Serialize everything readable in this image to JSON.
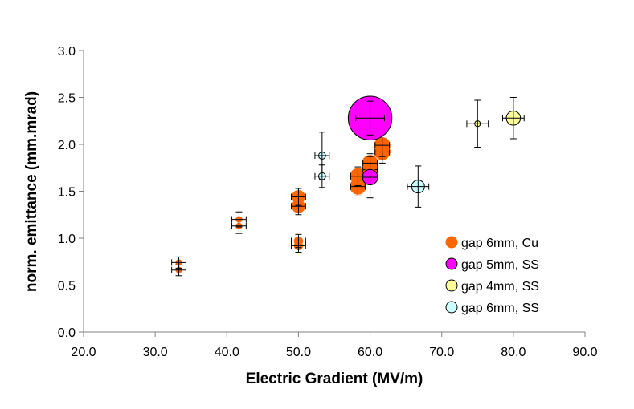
{
  "chart_data": {
    "type": "scatter",
    "title": "",
    "xlabel": "Electric Gradient (MV/m)",
    "ylabel": "norm. emittance (mm.mrad)",
    "xlim": [
      20,
      90
    ],
    "ylim": [
      0,
      3
    ],
    "x_ticks": [
      {
        "value": 20,
        "label": "20.0"
      },
      {
        "value": 30,
        "label": "30.0"
      },
      {
        "value": 40,
        "label": "40.0"
      },
      {
        "value": 50,
        "label": "50.0"
      },
      {
        "value": 60,
        "label": "60.0"
      },
      {
        "value": 70,
        "label": "70.0"
      },
      {
        "value": 80,
        "label": "80.0"
      },
      {
        "value": 90,
        "label": "90.0"
      }
    ],
    "y_ticks": [
      {
        "value": 0,
        "label": "0.0"
      },
      {
        "value": 0.5,
        "label": "0.5"
      },
      {
        "value": 1,
        "label": "1.0"
      },
      {
        "value": 1.5,
        "label": "1.5"
      },
      {
        "value": 2,
        "label": "2.0"
      },
      {
        "value": 2.5,
        "label": "2.5"
      },
      {
        "value": 3,
        "label": "3.0"
      }
    ],
    "grid": false,
    "legend_position": "right",
    "series": [
      {
        "name": "gap 6mm, Cu",
        "color": "#FF6600",
        "edge": "#FF6600",
        "legend_size": 1.0,
        "points": [
          {
            "x": 33.3,
            "y": 0.66,
            "xerr": 1.0,
            "yerr": 0.06,
            "size": 0.45
          },
          {
            "x": 33.3,
            "y": 0.74,
            "xerr": 1.0,
            "yerr": 0.06,
            "size": 0.45
          },
          {
            "x": 41.7,
            "y": 1.13,
            "xerr": 1.0,
            "yerr": 0.08,
            "size": 0.45
          },
          {
            "x": 41.7,
            "y": 1.2,
            "xerr": 1.0,
            "yerr": 0.08,
            "size": 0.45
          },
          {
            "x": 50.0,
            "y": 0.92,
            "xerr": 1.0,
            "yerr": 0.07,
            "size": 0.65
          },
          {
            "x": 50.0,
            "y": 0.97,
            "xerr": 1.0,
            "yerr": 0.07,
            "size": 0.65
          },
          {
            "x": 50.0,
            "y": 1.34,
            "xerr": 1.0,
            "yerr": 0.09,
            "size": 1.0
          },
          {
            "x": 50.0,
            "y": 1.44,
            "xerr": 1.0,
            "yerr": 0.09,
            "size": 1.0
          },
          {
            "x": 58.3,
            "y": 1.55,
            "xerr": 1.0,
            "yerr": 0.1,
            "size": 1.2
          },
          {
            "x": 58.3,
            "y": 1.66,
            "xerr": 1.0,
            "yerr": 0.1,
            "size": 1.2
          },
          {
            "x": 60.0,
            "y": 1.73,
            "xerr": 1.0,
            "yerr": 0.1,
            "size": 1.2
          },
          {
            "x": 60.0,
            "y": 1.8,
            "xerr": 1.0,
            "yerr": 0.1,
            "size": 1.2
          },
          {
            "x": 61.7,
            "y": 1.92,
            "xerr": 1.0,
            "yerr": 0.12,
            "size": 1.2
          },
          {
            "x": 61.7,
            "y": 1.99,
            "xerr": 1.0,
            "yerr": 0.12,
            "size": 1.2
          }
        ]
      },
      {
        "name": "gap 5mm, SS",
        "color": "#FF00FF",
        "edge": "#000000",
        "legend_size": 1.0,
        "points": [
          {
            "x": 60.0,
            "y": 2.28,
            "xerr": 2.0,
            "yerr": 0.18,
            "size": 3.4
          },
          {
            "x": 60.0,
            "y": 1.65,
            "xerr": 1.0,
            "yerr": 0.22,
            "size": 1.2
          }
        ]
      },
      {
        "name": "gap 4mm, SS",
        "color": "#FFFF99",
        "edge": "#000000",
        "legend_size": 1.0,
        "points": [
          {
            "x": 75.0,
            "y": 2.22,
            "xerr": 1.5,
            "yerr": 0.25,
            "size": 0.45
          },
          {
            "x": 80.0,
            "y": 2.28,
            "xerr": 1.5,
            "yerr": 0.22,
            "size": 1.1
          }
        ]
      },
      {
        "name": "gap 6mm, SS",
        "color": "#CCFFFF",
        "edge": "#000000",
        "legend_size": 1.0,
        "points": [
          {
            "x": 53.3,
            "y": 1.88,
            "xerr": 1.0,
            "yerr": 0.25,
            "size": 0.55
          },
          {
            "x": 53.3,
            "y": 1.66,
            "xerr": 1.0,
            "yerr": 0.12,
            "size": 0.55
          },
          {
            "x": 66.7,
            "y": 1.55,
            "xerr": 1.5,
            "yerr": 0.22,
            "size": 1.0
          }
        ]
      }
    ]
  }
}
